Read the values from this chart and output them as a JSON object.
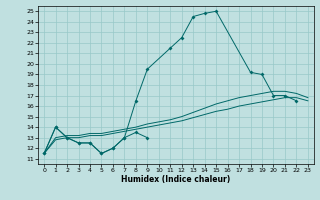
{
  "xlabel": "Humidex (Indice chaleur)",
  "background_color": "#c0e0e0",
  "line_color": "#006868",
  "grid_color": "#98c8c8",
  "xlim": [
    -0.5,
    23.5
  ],
  "ylim": [
    10.5,
    25.5
  ],
  "xticks": [
    0,
    1,
    2,
    3,
    4,
    5,
    6,
    7,
    8,
    9,
    10,
    11,
    12,
    13,
    14,
    15,
    16,
    17,
    18,
    19,
    20,
    21,
    22,
    23
  ],
  "yticks": [
    11,
    12,
    13,
    14,
    15,
    16,
    17,
    18,
    19,
    20,
    21,
    22,
    23,
    24,
    25
  ],
  "s0_x": [
    0,
    1,
    2,
    3,
    4,
    5,
    6,
    7,
    8,
    9
  ],
  "s0_y": [
    11.5,
    14.0,
    13.0,
    12.5,
    12.5,
    11.5,
    12.0,
    13.0,
    13.5,
    13.0
  ],
  "s1_x": [
    0,
    1,
    2,
    3,
    4,
    5,
    6,
    7,
    8,
    9,
    11,
    12,
    13,
    14,
    15,
    18,
    19,
    20,
    21,
    22
  ],
  "s1_y": [
    11.5,
    14.0,
    13.0,
    12.5,
    12.5,
    11.5,
    12.0,
    13.0,
    16.5,
    19.5,
    21.5,
    22.5,
    24.5,
    24.8,
    25.0,
    19.2,
    19.0,
    17.0,
    17.0,
    16.5
  ],
  "s2_x": [
    0,
    1,
    2,
    3,
    4,
    5,
    6,
    7,
    8,
    9,
    10,
    11,
    12,
    13,
    14,
    15,
    16,
    17,
    18,
    19,
    20,
    21,
    22,
    23
  ],
  "s2_y": [
    11.5,
    12.8,
    13.0,
    13.0,
    13.2,
    13.2,
    13.4,
    13.6,
    13.8,
    14.0,
    14.2,
    14.4,
    14.6,
    14.9,
    15.2,
    15.5,
    15.7,
    16.0,
    16.2,
    16.4,
    16.6,
    16.8,
    16.8,
    16.5
  ],
  "s3_x": [
    0,
    1,
    2,
    3,
    4,
    5,
    6,
    7,
    8,
    9,
    10,
    11,
    12,
    13,
    14,
    15,
    16,
    17,
    18,
    19,
    20,
    21,
    22,
    23
  ],
  "s3_y": [
    11.5,
    13.0,
    13.2,
    13.2,
    13.4,
    13.4,
    13.6,
    13.8,
    14.0,
    14.3,
    14.5,
    14.7,
    15.0,
    15.4,
    15.8,
    16.2,
    16.5,
    16.8,
    17.0,
    17.2,
    17.4,
    17.4,
    17.2,
    16.8
  ]
}
